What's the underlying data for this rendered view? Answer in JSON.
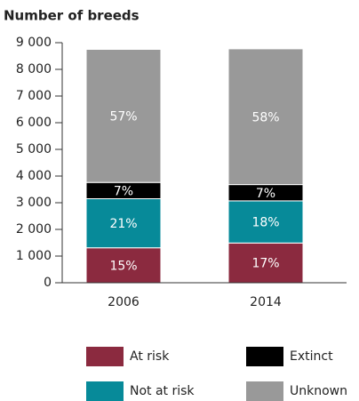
{
  "chart_data": {
    "type": "stacked-bar",
    "title": "Number of breeds",
    "categories": [
      "2006",
      "2014"
    ],
    "series": [
      {
        "name": "At risk",
        "color": "#8b2a3f",
        "values": [
          1310,
          1490
        ],
        "value_labels": [
          "15%",
          "17%"
        ]
      },
      {
        "name": "Not at risk",
        "color": "#078a99",
        "values": [
          1840,
          1580
        ],
        "value_labels": [
          "21%",
          "18%"
        ]
      },
      {
        "name": "Extinct",
        "color": "#000000",
        "values": [
          610,
          610
        ],
        "value_labels": [
          "7%",
          "7%"
        ]
      },
      {
        "name": "Unknown",
        "color": "#999999",
        "values": [
          4990,
          5090
        ],
        "value_labels": [
          "57%",
          "58%"
        ]
      }
    ],
    "ylim": [
      0,
      9000
    ],
    "yticks": [
      0,
      {
        "value": 1000,
        "label": "1 000"
      },
      {
        "value": 2000,
        "label": "2 000"
      },
      {
        "value": 3000,
        "label": "3 000"
      },
      {
        "value": 4000,
        "label": "4 000"
      },
      {
        "value": 5000,
        "label": "5 000"
      },
      {
        "value": 6000,
        "label": "6 000"
      },
      {
        "value": 7000,
        "label": "7 000"
      },
      {
        "value": 8000,
        "label": "8 000"
      },
      {
        "value": 9000,
        "label": "9 000"
      }
    ]
  }
}
